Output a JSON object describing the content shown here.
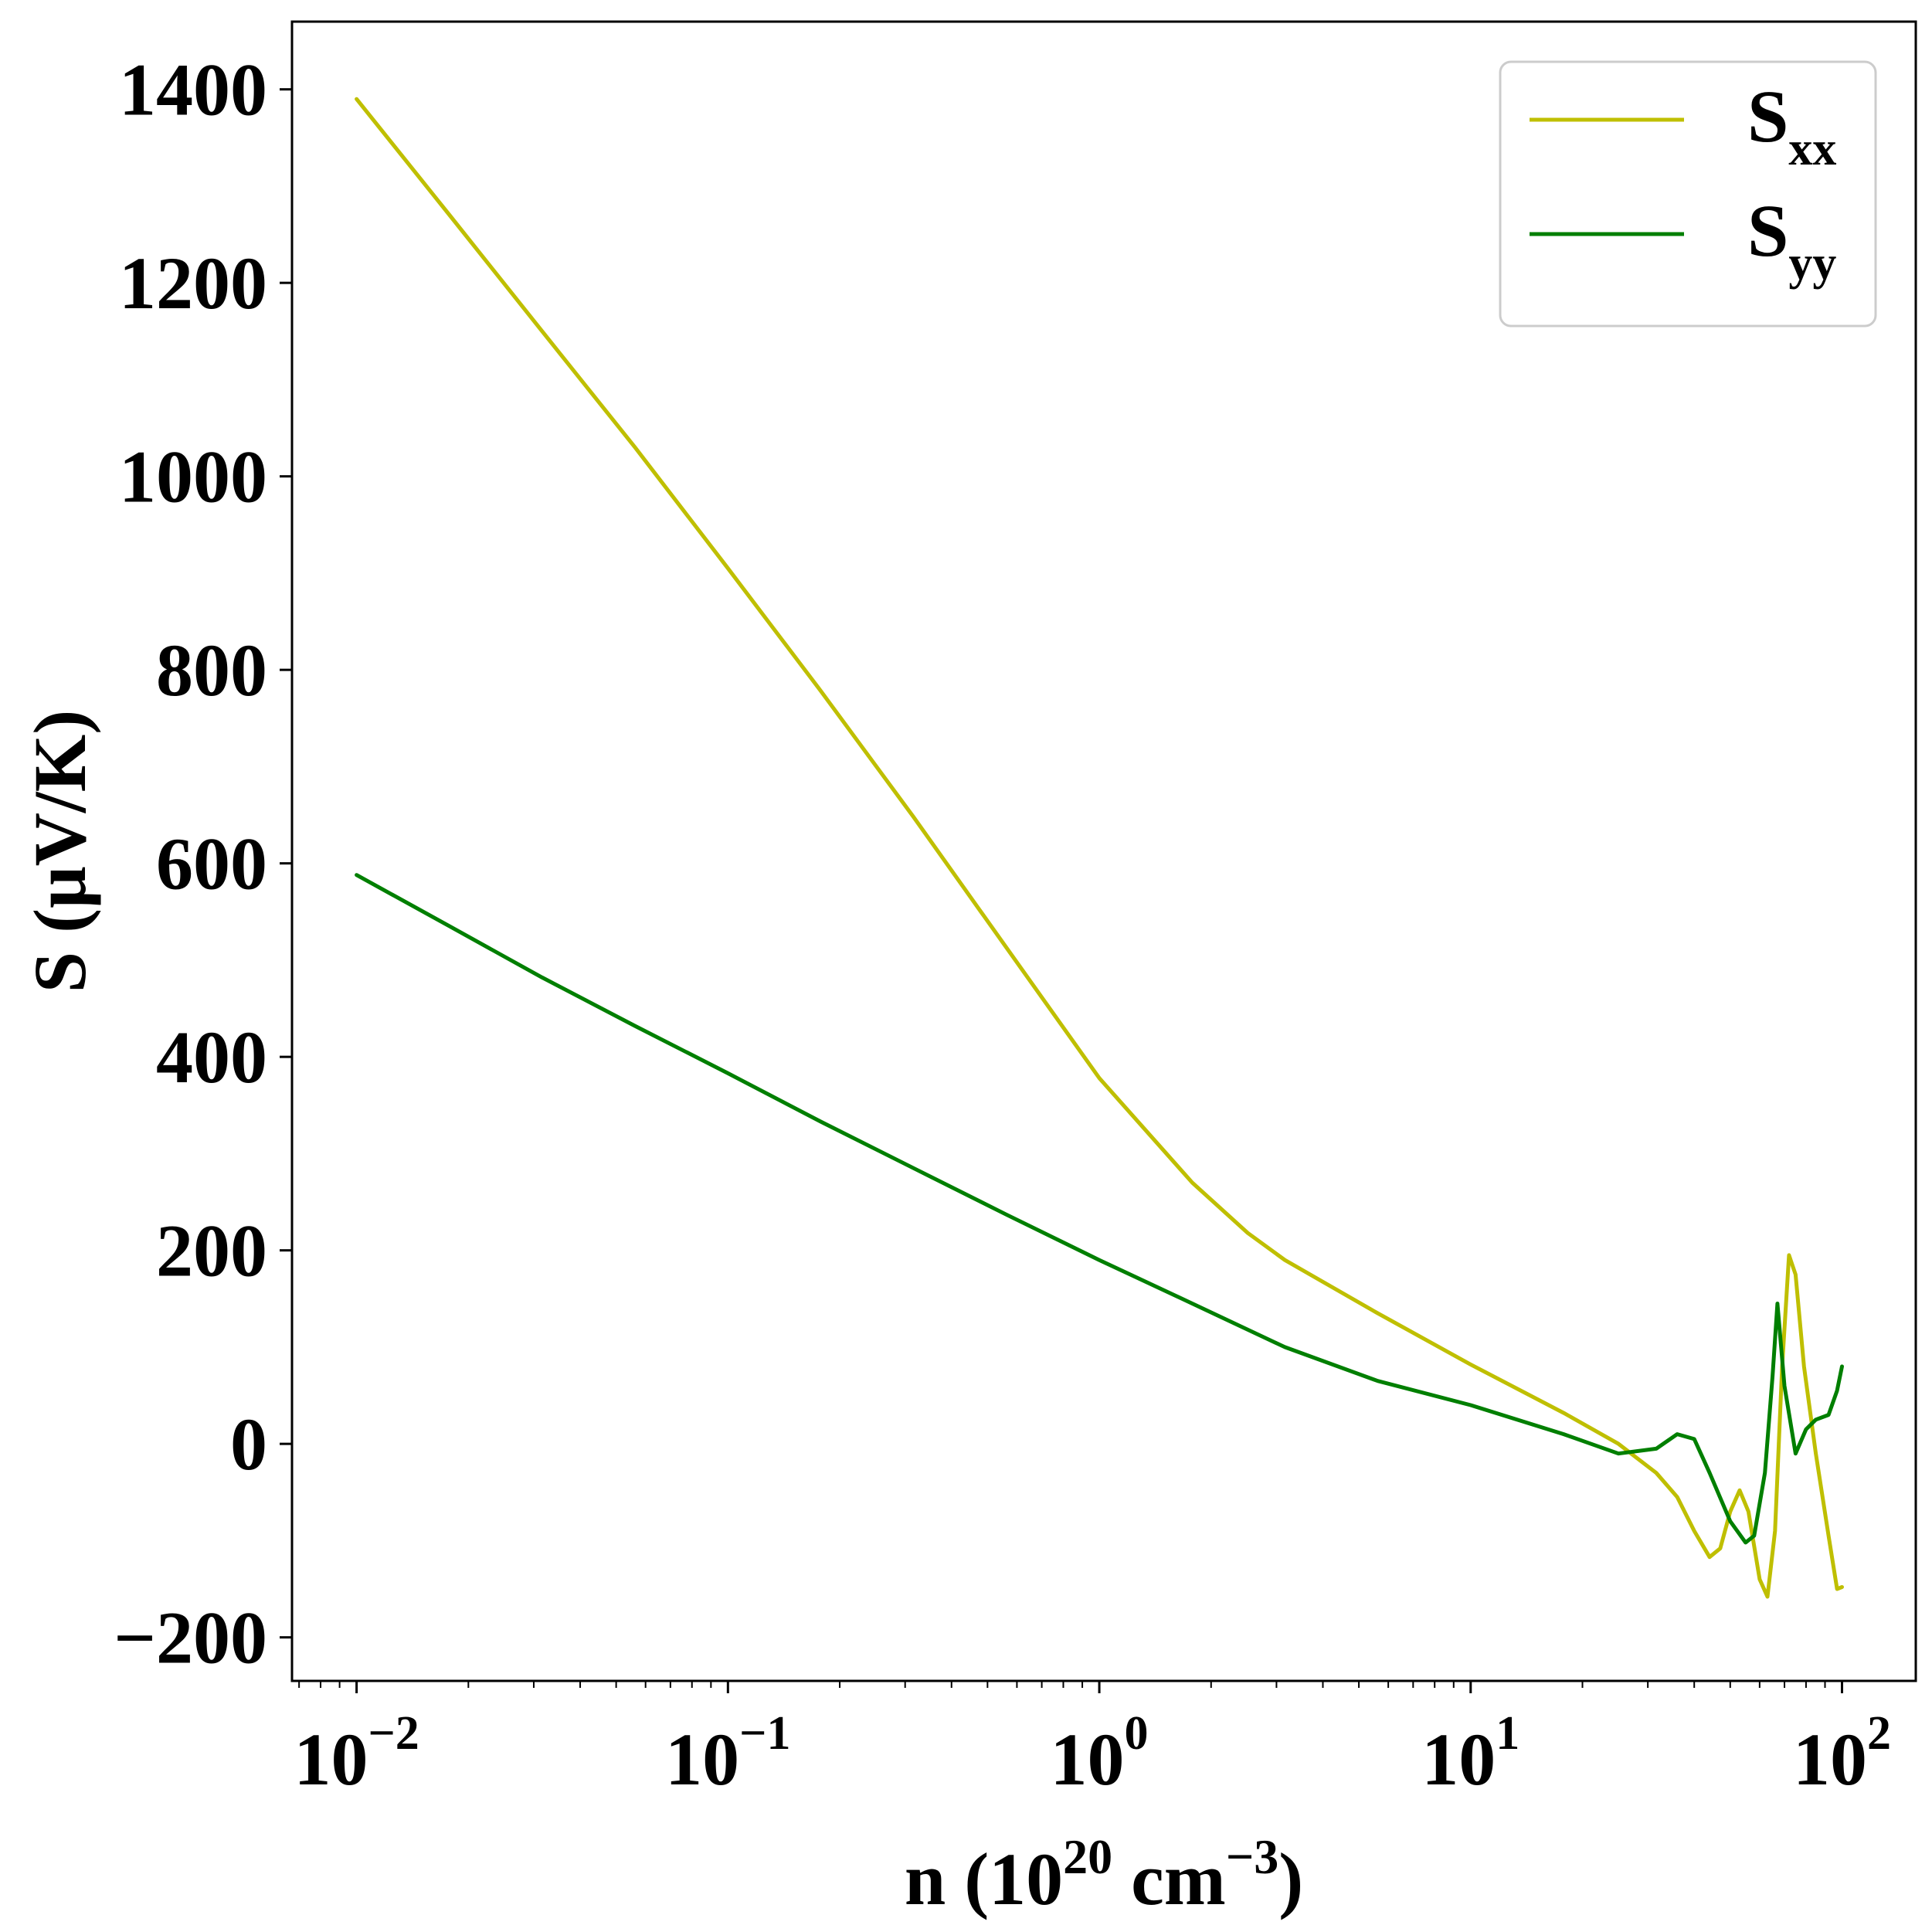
{
  "chart_data": {
    "type": "line",
    "xscale": "log",
    "xlim": [
      0.0067,
      158
    ],
    "ylim": [
      -245,
      1470
    ],
    "xlabel": {
      "base": "n (10",
      "sup1": "20",
      "mid": " cm",
      "sup2": "−3",
      "end": ")"
    },
    "ylabel": "S (μV/K)",
    "xticks": [
      {
        "value": 0.01,
        "base": "10",
        "exp": "−2"
      },
      {
        "value": 0.1,
        "base": "10",
        "exp": "−1"
      },
      {
        "value": 1,
        "base": "10",
        "exp": "0"
      },
      {
        "value": 10,
        "base": "10",
        "exp": "1"
      },
      {
        "value": 100,
        "base": "10",
        "exp": "2"
      }
    ],
    "yticks": [
      {
        "value": -200,
        "label": "−200"
      },
      {
        "value": 0,
        "label": "0"
      },
      {
        "value": 200,
        "label": "200"
      },
      {
        "value": 400,
        "label": "400"
      },
      {
        "value": 600,
        "label": "600"
      },
      {
        "value": 800,
        "label": "800"
      },
      {
        "value": 1000,
        "label": "1000"
      },
      {
        "value": 1200,
        "label": "1200"
      },
      {
        "value": 1400,
        "label": "1400"
      }
    ],
    "grid": false,
    "legend_position": "top-right",
    "series": [
      {
        "name": "S",
        "name_sub": "xx",
        "color": "#bfbf00",
        "points": [
          [
            0.01,
            1390
          ],
          [
            0.0178,
            1270
          ],
          [
            0.0316,
            1150
          ],
          [
            0.0562,
            1030
          ],
          [
            0.1,
            905
          ],
          [
            0.178,
            778
          ],
          [
            0.316,
            648
          ],
          [
            0.562,
            513
          ],
          [
            1.0,
            378
          ],
          [
            1.78,
            270
          ],
          [
            2.51,
            218
          ],
          [
            3.16,
            190
          ],
          [
            5.62,
            135
          ],
          [
            10,
            82
          ],
          [
            17.8,
            32
          ],
          [
            25,
            0
          ],
          [
            31.6,
            -30
          ],
          [
            36,
            -55
          ],
          [
            40,
            -90
          ],
          [
            44,
            -117
          ],
          [
            47,
            -108
          ],
          [
            50,
            -70
          ],
          [
            53,
            -48
          ],
          [
            56,
            -70
          ],
          [
            60,
            -140
          ],
          [
            63,
            -158
          ],
          [
            66,
            -90
          ],
          [
            69,
            80
          ],
          [
            72,
            195
          ],
          [
            75,
            175
          ],
          [
            79,
            80
          ],
          [
            85,
            -10
          ],
          [
            92,
            -95
          ],
          [
            97,
            -150
          ],
          [
            100,
            -148
          ]
        ]
      },
      {
        "name": "S",
        "name_sub": "yy",
        "color": "#007f00",
        "points": [
          [
            0.01,
            588
          ],
          [
            0.0178,
            535
          ],
          [
            0.0316,
            482
          ],
          [
            0.0562,
            432
          ],
          [
            0.1,
            383
          ],
          [
            0.178,
            333
          ],
          [
            0.316,
            285
          ],
          [
            0.562,
            237
          ],
          [
            1.0,
            190
          ],
          [
            1.78,
            145
          ],
          [
            3.16,
            100
          ],
          [
            5.62,
            65
          ],
          [
            10,
            40
          ],
          [
            17.8,
            10
          ],
          [
            25,
            -10
          ],
          [
            31.6,
            -5
          ],
          [
            36,
            10
          ],
          [
            40,
            5
          ],
          [
            44,
            -30
          ],
          [
            50,
            -80
          ],
          [
            55,
            -102
          ],
          [
            58,
            -95
          ],
          [
            62,
            -30
          ],
          [
            65,
            70
          ],
          [
            67,
            145
          ],
          [
            70,
            60
          ],
          [
            75,
            -10
          ],
          [
            80,
            15
          ],
          [
            85,
            25
          ],
          [
            92,
            30
          ],
          [
            97,
            55
          ],
          [
            100,
            80
          ]
        ]
      }
    ]
  }
}
